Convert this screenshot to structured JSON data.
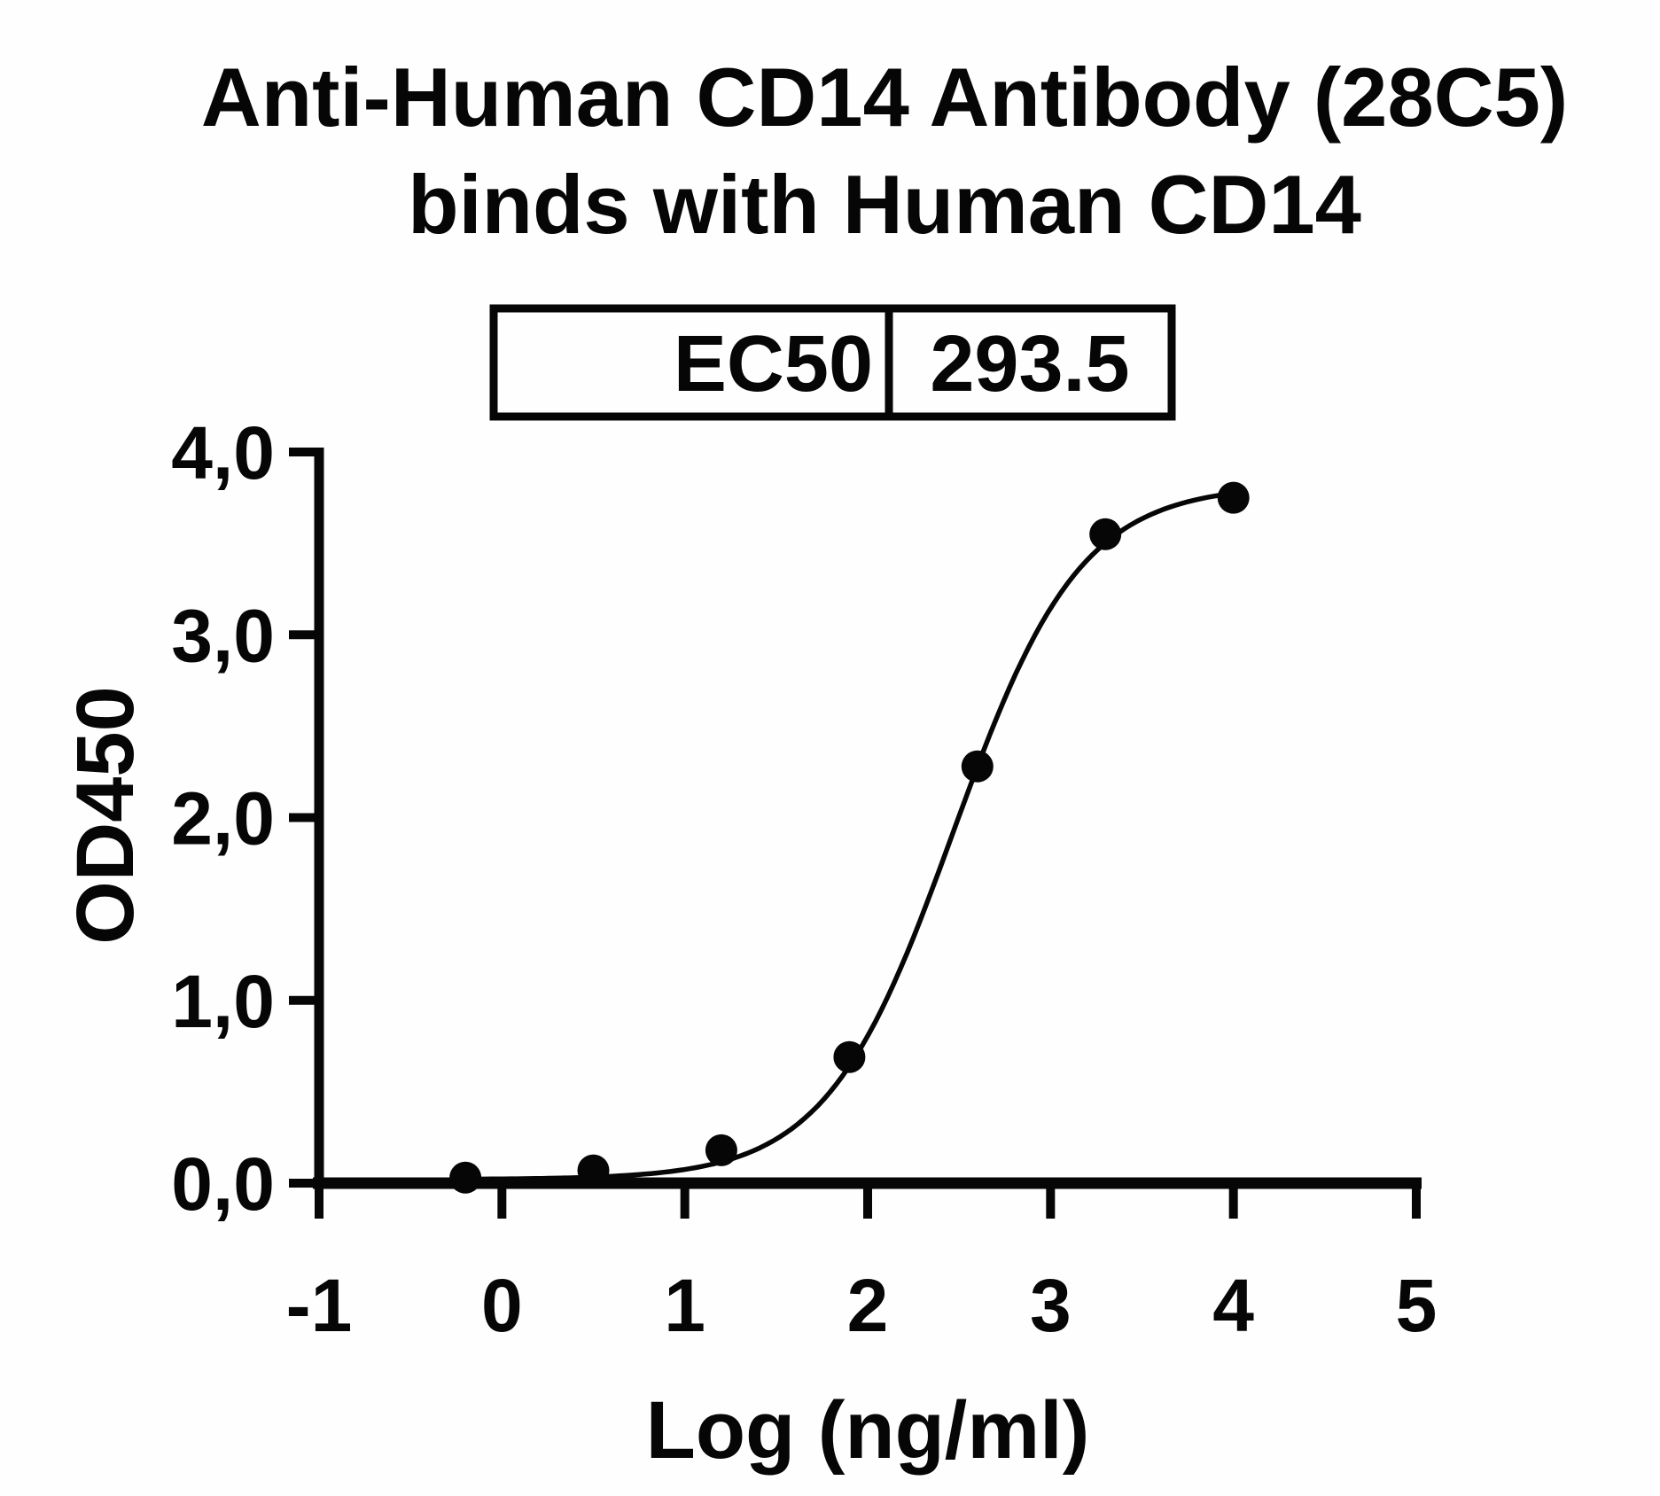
{
  "page": {
    "background_color": "#fefefe",
    "ink_color": "#060606"
  },
  "chart": {
    "title_line1": "Anti-Human CD14 Antibody (28C5)",
    "title_line2": "binds with Human CD14"
  },
  "ec50_table": {
    "label": "EC50",
    "value": "293.5"
  },
  "chart_data": {
    "type": "scatter",
    "title": "Anti-Human CD14 Antibody (28C5) binds with Human CD14",
    "xlabel": "Log (ng/ml)",
    "ylabel": "OD450",
    "xlim": [
      -1,
      5
    ],
    "ylim": [
      0,
      4
    ],
    "grid": false,
    "legend": null,
    "x_ticks": [
      -1,
      0,
      1,
      2,
      3,
      4,
      5
    ],
    "x_tick_labels": [
      "-1",
      "0",
      "1",
      "2",
      "3",
      "4",
      "5"
    ],
    "y_ticks": [
      0,
      1,
      2,
      3,
      4
    ],
    "y_tick_labels": [
      "0,0",
      "1,0",
      "2,0",
      "3,0",
      "4,0"
    ],
    "points": {
      "x": [
        -0.2,
        0.5,
        1.2,
        1.9,
        2.6,
        3.3,
        4.0
      ],
      "y": [
        0.03,
        0.07,
        0.18,
        0.69,
        2.28,
        3.55,
        3.75
      ]
    },
    "fit_curve": {
      "model": "4PL",
      "bottom": 0.02,
      "top": 3.82,
      "log_ec50": 2.4676,
      "hill_slope": 1.25,
      "x_range": [
        -0.2,
        4.0
      ]
    },
    "ec50": 293.5,
    "marker": {
      "shape": "circle",
      "color": "#060606"
    }
  }
}
